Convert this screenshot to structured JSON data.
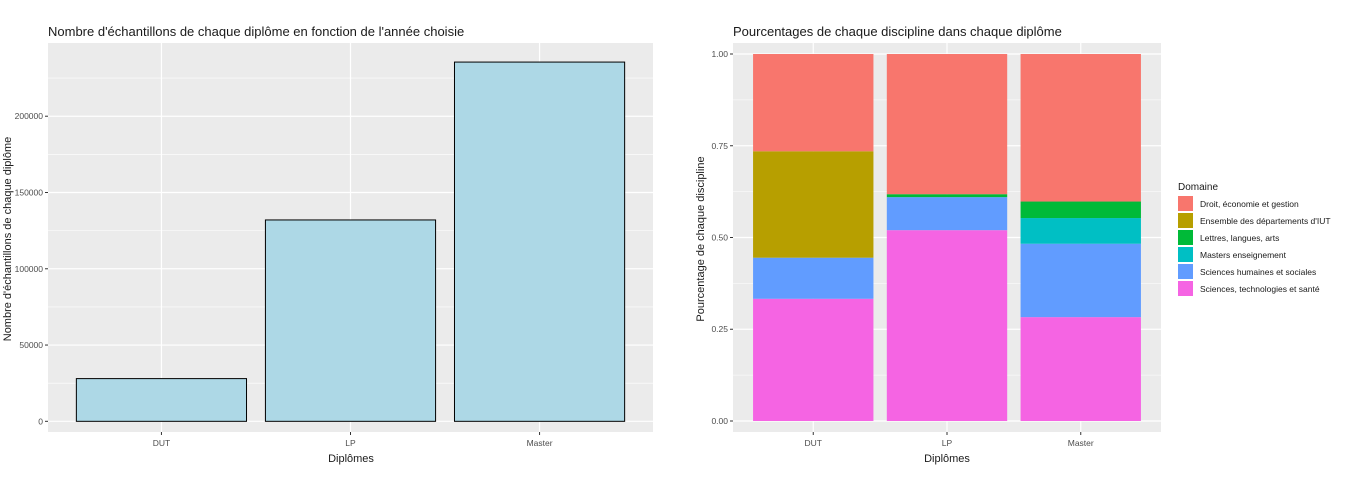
{
  "chart_data": [
    {
      "type": "bar",
      "title": "Nombre d'échantillons de chaque diplôme en fonction de l'année choisie",
      "xlabel": "Diplômes",
      "ylabel": "Nombre d'échantillons de chaque diplôme",
      "categories": [
        "DUT",
        "LP",
        "Master"
      ],
      "values": [
        28000,
        132000,
        235500
      ],
      "ylim": [
        -7000,
        248000
      ],
      "yticks": [
        0,
        50000,
        100000,
        150000,
        200000
      ],
      "ytick_labels": [
        "0",
        "50000",
        "100000",
        "150000",
        "200000"
      ],
      "bar_color": "#add8e6",
      "bar_border_color": "#000000",
      "grid": true
    },
    {
      "type": "bar",
      "stacked": true,
      "title": "Pourcentages de chaque discipline dans chaque diplôme",
      "xlabel": "Diplômes",
      "ylabel": "Pourcentage de chaque discipline",
      "categories": [
        "DUT",
        "LP",
        "Master"
      ],
      "ylim": [
        -0.03,
        1.03
      ],
      "yticks": [
        0,
        0.25,
        0.5,
        0.75,
        1
      ],
      "ytick_labels": [
        "0.00",
        "0.25",
        "0.50",
        "0.75",
        "1.00"
      ],
      "legend_title": "Domaine",
      "legend_position": "right",
      "grid": true,
      "series": [
        {
          "name": "Droit, économie et gestion",
          "color": "#F8766D",
          "values": [
            0.265,
            0.382,
            0.402
          ]
        },
        {
          "name": "Ensemble des départements d'IUT",
          "color": "#B79F00",
          "values": [
            0.29,
            0,
            0
          ]
        },
        {
          "name": "Lettres, langues, arts",
          "color": "#00BA38",
          "values": [
            0,
            0.008,
            0.045
          ]
        },
        {
          "name": "Masters enseignement",
          "color": "#00BFC4",
          "values": [
            0,
            0,
            0.07
          ]
        },
        {
          "name": "Sciences humaines et sociales",
          "color": "#619CFF",
          "values": [
            0.112,
            0.09,
            0.2
          ]
        },
        {
          "name": "Sciences, technologies et santé",
          "color": "#F564E3",
          "values": [
            0.333,
            0.52,
            0.283
          ]
        }
      ]
    }
  ]
}
